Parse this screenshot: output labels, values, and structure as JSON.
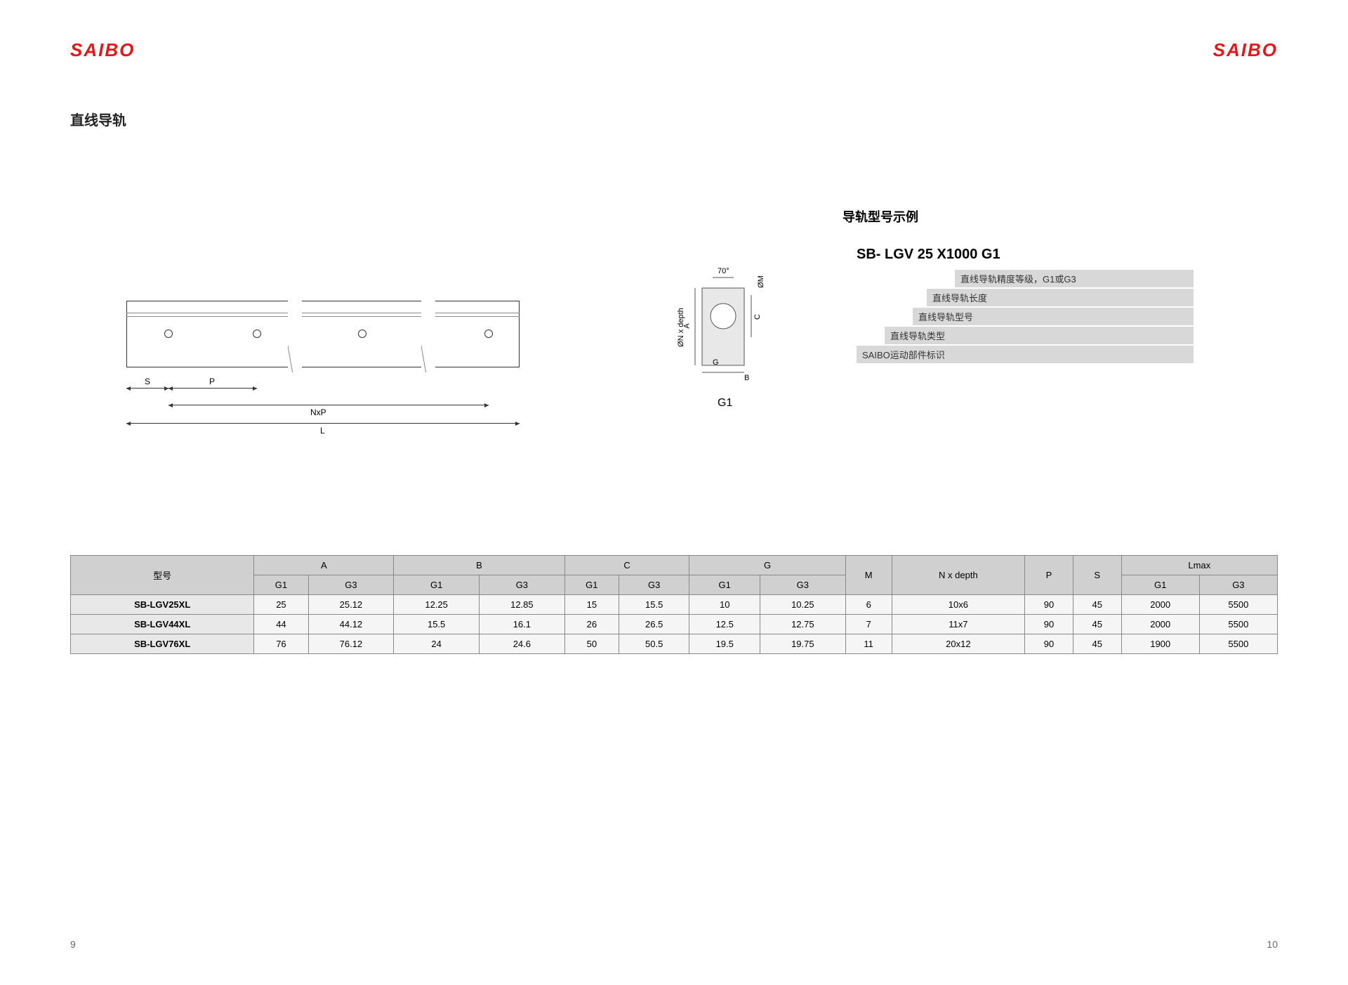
{
  "brand": "SAIBO",
  "page_title": "直线导轨",
  "example": {
    "title": "导轨型号示例",
    "code_parts": [
      "SB-",
      "LGV",
      "25",
      "X1000",
      "G1"
    ],
    "legends": [
      {
        "indent": 160,
        "text": "直线导轨精度等级，G1或G3"
      },
      {
        "indent": 120,
        "text": "直线导轨长度"
      },
      {
        "indent": 100,
        "text": "直线导轨型号"
      },
      {
        "indent": 60,
        "text": "直线导轨类型"
      },
      {
        "indent": 20,
        "text": "SAIBO运动部件标识"
      }
    ]
  },
  "diagram": {
    "labels": {
      "S": "S",
      "P": "P",
      "NxP": "NxP",
      "L": "L"
    }
  },
  "cross_section": {
    "angle": "70°",
    "labels": [
      "A",
      "C",
      "G",
      "B",
      "ØM",
      "ØN x depth"
    ],
    "name": "G1"
  },
  "table": {
    "header_top": [
      "型号",
      "A",
      "B",
      "C",
      "G",
      "M",
      "N x depth",
      "P",
      "S",
      "Lmax"
    ],
    "header_sub_pairs": [
      "G1",
      "G3",
      "G1",
      "G3",
      "G1",
      "G3",
      "G1",
      "G3",
      "G1",
      "G3"
    ],
    "rows": [
      {
        "model": "SB-LGV25XL",
        "cells": [
          "25",
          "25.12",
          "12.25",
          "12.85",
          "15",
          "15.5",
          "10",
          "10.25",
          "6",
          "10x6",
          "90",
          "45",
          "2000",
          "5500"
        ]
      },
      {
        "model": "SB-LGV44XL",
        "cells": [
          "44",
          "44.12",
          "15.5",
          "16.1",
          "26",
          "26.5",
          "12.5",
          "12.75",
          "7",
          "11x7",
          "90",
          "45",
          "2000",
          "5500"
        ]
      },
      {
        "model": "SB-LGV76XL",
        "cells": [
          "76",
          "76.12",
          "24",
          "24.6",
          "50",
          "50.5",
          "19.5",
          "19.75",
          "11",
          "20x12",
          "90",
          "45",
          "1900",
          "5500"
        ]
      }
    ]
  },
  "page_left": "9",
  "page_right": "10",
  "colors": {
    "brand_red": "#e4171a",
    "header_bg": "#d0d0d0",
    "model_bg": "#e8e8e8",
    "cell_bg": "#f5f5f5",
    "legend_bg": "#d8d8d8"
  }
}
